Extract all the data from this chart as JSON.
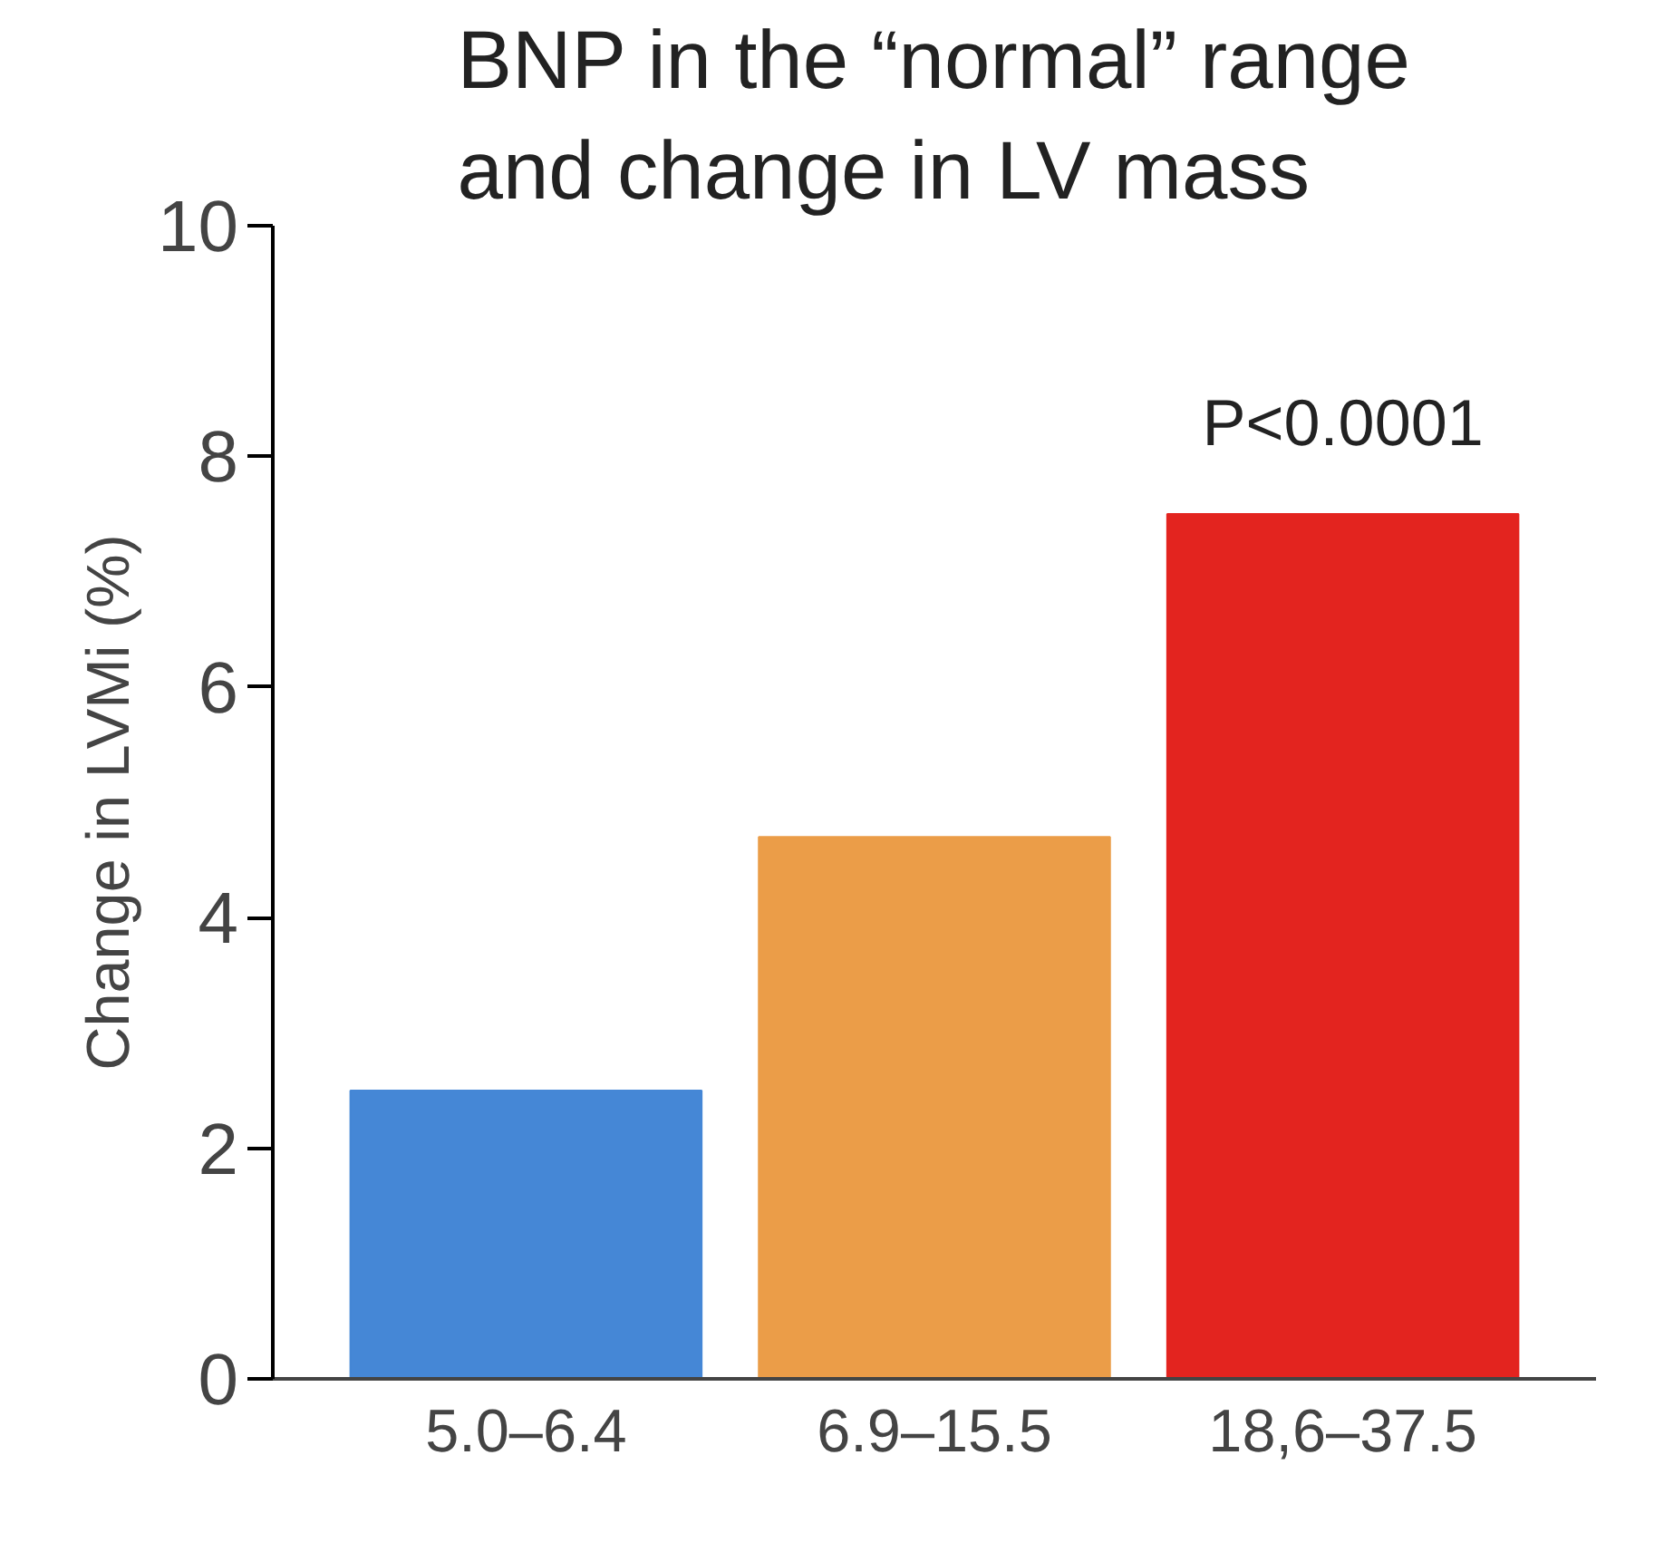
{
  "chart_data": {
    "type": "bar",
    "title": "BNP in the “normal” range\nand change in LV mass",
    "ylabel": "Change in LVMi (%)",
    "categories": [
      "5.0–6.4",
      "6.9–15.5",
      "18,6–37.5"
    ],
    "values": [
      2.5,
      4.7,
      7.5
    ],
    "colors": [
      "#4587d6",
      "#eb9d48",
      "#e3241f"
    ],
    "ylim": [
      0,
      10
    ],
    "yticks": [
      0,
      2,
      4,
      6,
      8,
      10
    ],
    "grid": false,
    "annotations": [
      {
        "text": "P<0.0001",
        "x": "18,6–37.5",
        "y": 7.5
      }
    ]
  }
}
